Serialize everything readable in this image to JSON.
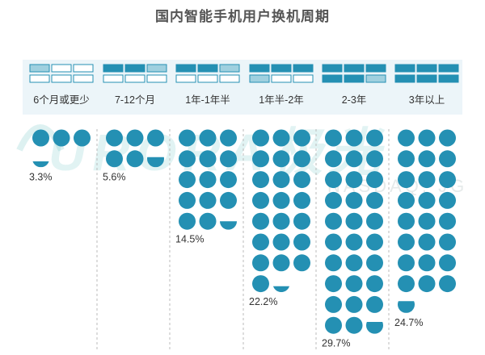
{
  "page": {
    "title": "国内智能手机用户换机周期",
    "watermark_text": "URORA极光",
    "watermark_sub": "NASDAQ: JG"
  },
  "colors": {
    "dot": "#2490b3",
    "cell_light": "#9fd0df",
    "band": "#ecf5f9",
    "divider": "#bbbbbb"
  },
  "chart_data": {
    "type": "pictogram",
    "title": "国内智能手机用户换机周期",
    "categories": [
      "6个月或更少",
      "7-12个月",
      "1年-1年半",
      "1年半-2年",
      "2-3年",
      "3年以上"
    ],
    "values": [
      3.3,
      5.6,
      14.5,
      22.2,
      29.7,
      24.7
    ],
    "value_labels": [
      "3.3%",
      "5.6%",
      "14.5%",
      "22.2%",
      "29.7%",
      "24.7%"
    ],
    "unit": "%",
    "dot_percent": 1,
    "dots_per_row": 3,
    "header_icon_filled_cells": [
      0,
      2,
      2,
      3,
      5,
      6
    ]
  }
}
